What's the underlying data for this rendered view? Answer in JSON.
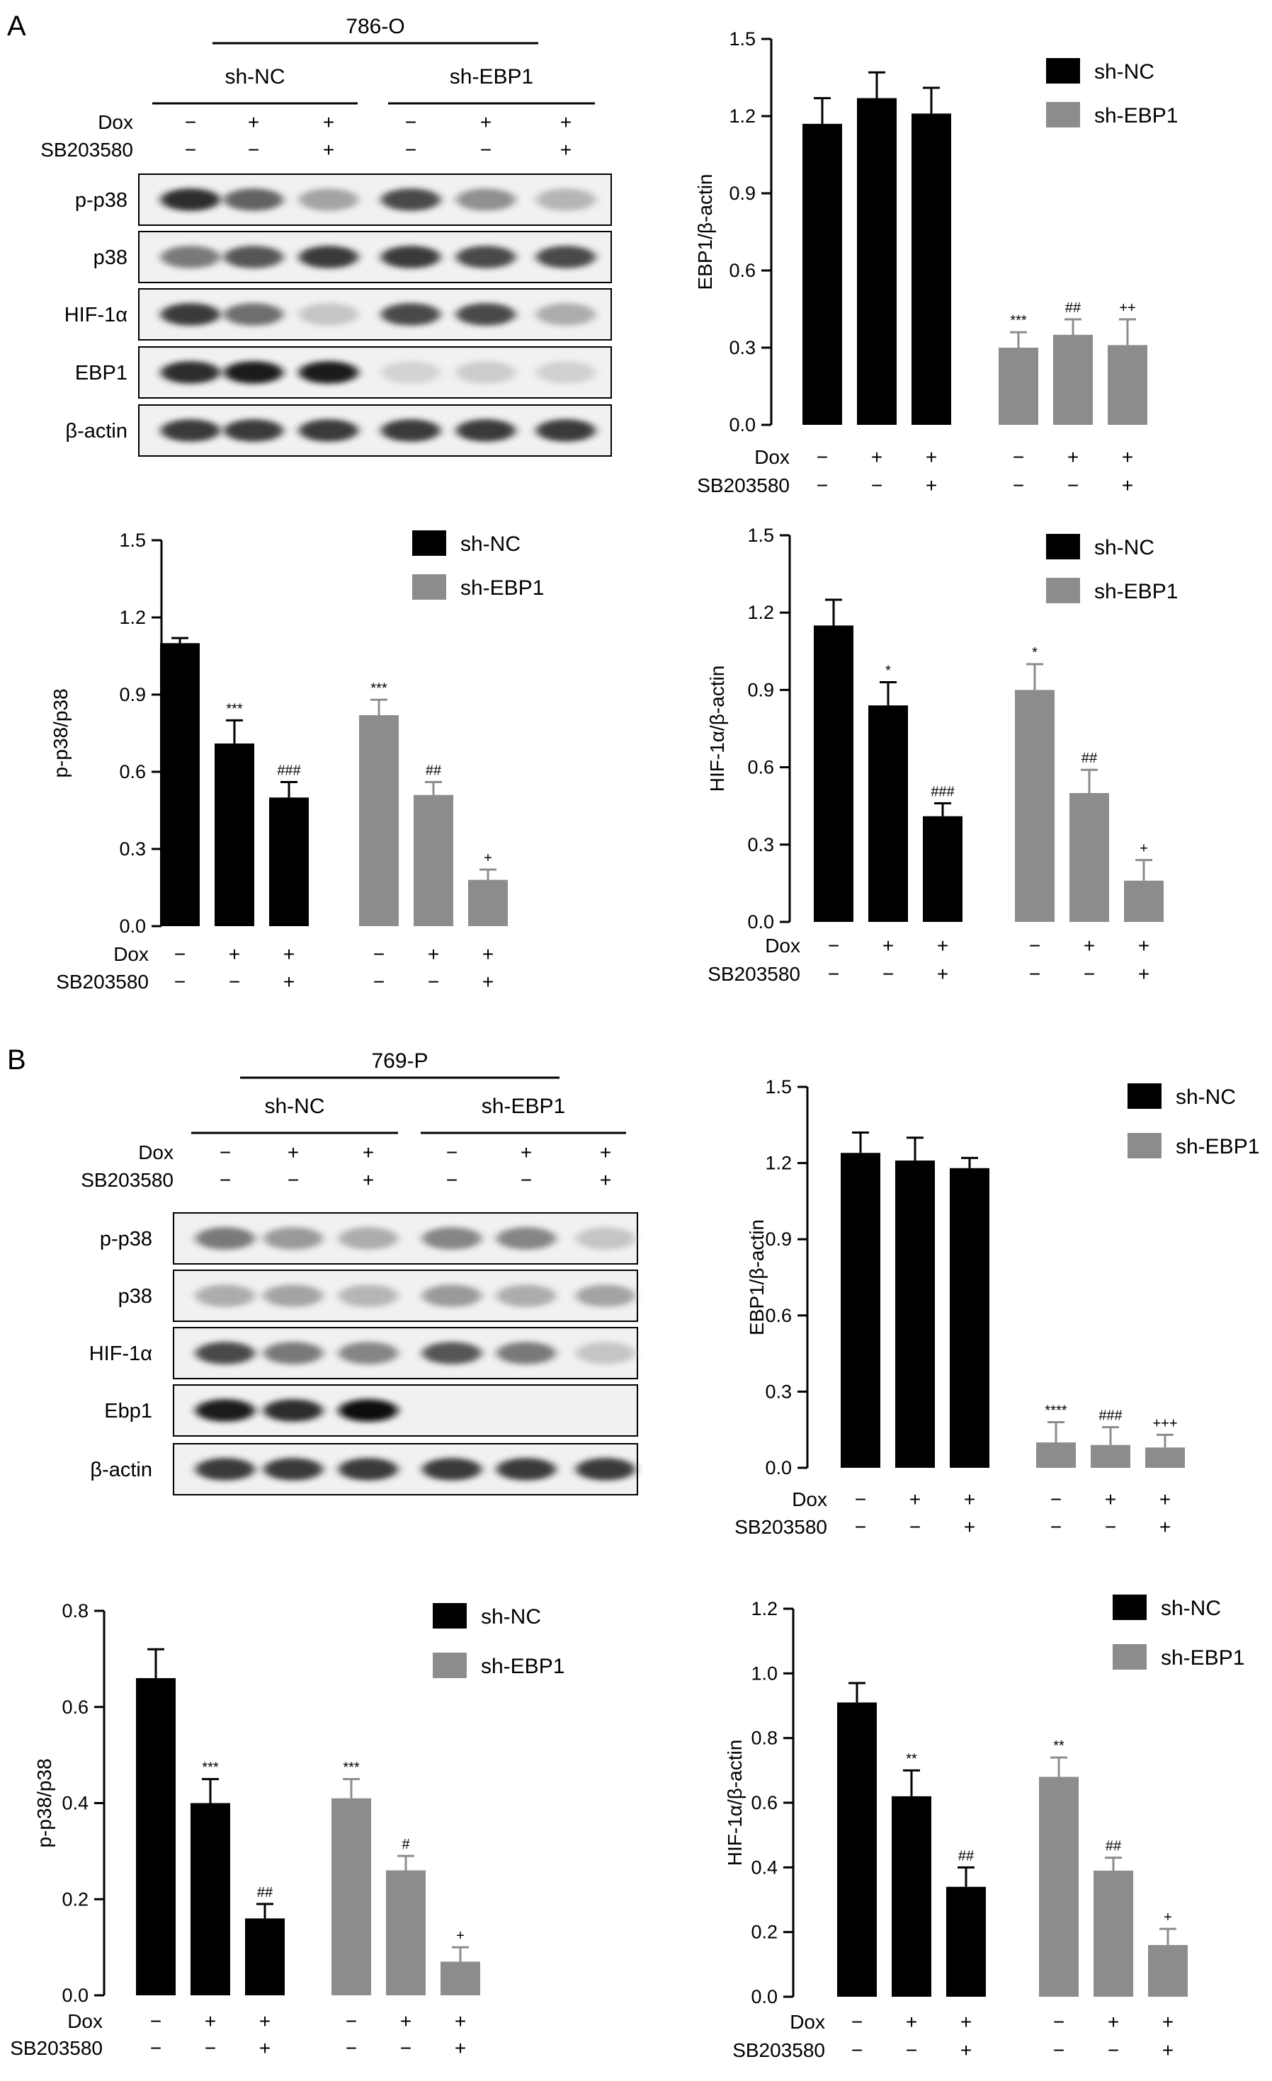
{
  "panelA": {
    "letter": "A",
    "blot": {
      "cell_line": "786-O",
      "groups": [
        "sh-NC",
        "sh-EBP1"
      ],
      "conditions": [
        {
          "name": "Dox",
          "values": [
            "−",
            "+",
            "+",
            "−",
            "+",
            "+"
          ]
        },
        {
          "name": "SB203580",
          "values": [
            "−",
            "−",
            "+",
            "−",
            "−",
            "+"
          ]
        }
      ],
      "rows": [
        {
          "label": "p-p38",
          "intensities": [
            0.9,
            0.7,
            0.4,
            0.8,
            0.5,
            0.3
          ]
        },
        {
          "label": "p38",
          "intensities": [
            0.6,
            0.75,
            0.85,
            0.85,
            0.8,
            0.8
          ]
        },
        {
          "label": "HIF-1α",
          "intensities": [
            0.85,
            0.65,
            0.2,
            0.8,
            0.8,
            0.35
          ]
        },
        {
          "label": "EBP1",
          "intensities": [
            0.9,
            0.95,
            0.95,
            0.1,
            0.15,
            0.12
          ]
        },
        {
          "label": "β-actin",
          "intensities": [
            0.85,
            0.85,
            0.85,
            0.85,
            0.85,
            0.85
          ]
        }
      ]
    }
  },
  "panelB": {
    "letter": "B",
    "blot": {
      "cell_line": "769-P",
      "groups": [
        "sh-NC",
        "sh-EBP1"
      ],
      "conditions": [
        {
          "name": "Dox",
          "values": [
            "−",
            "+",
            "+",
            "−",
            "+",
            "+"
          ]
        },
        {
          "name": "SB203580",
          "values": [
            "−",
            "−",
            "+",
            "−",
            "−",
            "+"
          ]
        }
      ],
      "rows": [
        {
          "label": "p-p38",
          "intensities": [
            0.6,
            0.45,
            0.35,
            0.55,
            0.55,
            0.2
          ]
        },
        {
          "label": "p38",
          "intensities": [
            0.35,
            0.4,
            0.3,
            0.45,
            0.35,
            0.4
          ]
        },
        {
          "label": "HIF-1α",
          "intensities": [
            0.8,
            0.6,
            0.55,
            0.75,
            0.6,
            0.2
          ]
        },
        {
          "label": "Ebp1",
          "intensities": [
            0.95,
            0.9,
            1.0,
            0.0,
            0.0,
            0.0
          ]
        },
        {
          "label": "β-actin",
          "intensities": [
            0.85,
            0.85,
            0.85,
            0.85,
            0.85,
            0.85
          ]
        }
      ]
    }
  },
  "conditions_axis": {
    "dox_label": "Dox",
    "sb_label": "SB203580",
    "dox": [
      "−",
      "+",
      "+",
      "−",
      "+",
      "+"
    ],
    "sb": [
      "−",
      "−",
      "+",
      "−",
      "−",
      "+"
    ]
  },
  "legend": {
    "sh_nc": "sh-NC",
    "sh_ebp1": "sh-EBP1"
  },
  "colors": {
    "sh_nc": "#000000",
    "sh_ebp1": "#8c8c8c"
  },
  "chart_data": [
    {
      "id": "A-EBP1",
      "type": "bar",
      "title": "",
      "xlabel": "",
      "ylabel": "EBP1/β-actin",
      "ylim": [
        0,
        1.5
      ],
      "yticks": [
        "0.0",
        "0.3",
        "0.6",
        "0.9",
        "1.2",
        "1.5"
      ],
      "legend_position": "top-right",
      "series": [
        {
          "name": "sh-NC",
          "values": [
            1.17,
            1.27,
            1.21
          ],
          "errors": [
            0.1,
            0.1,
            0.1
          ],
          "annotations": [
            "",
            "",
            ""
          ]
        },
        {
          "name": "sh-EBP1",
          "values": [
            0.3,
            0.35,
            0.31
          ],
          "errors": [
            0.06,
            0.06,
            0.1
          ],
          "annotations": [
            "***",
            "##",
            "++"
          ]
        }
      ]
    },
    {
      "id": "A-pp38",
      "type": "bar",
      "title": "",
      "xlabel": "",
      "ylabel": "p-p38/p38",
      "ylim": [
        0,
        1.5
      ],
      "yticks": [
        "0.0",
        "0.3",
        "0.6",
        "0.9",
        "1.2",
        "1.5"
      ],
      "legend_position": "top-right",
      "series": [
        {
          "name": "sh-NC",
          "values": [
            1.1,
            0.71,
            0.5
          ],
          "errors": [
            0.02,
            0.09,
            0.06
          ],
          "annotations": [
            "",
            "***",
            "###"
          ]
        },
        {
          "name": "sh-EBP1",
          "values": [
            0.82,
            0.51,
            0.18
          ],
          "errors": [
            0.06,
            0.05,
            0.04
          ],
          "annotations": [
            "***",
            "##",
            "+"
          ]
        }
      ]
    },
    {
      "id": "A-HIF",
      "type": "bar",
      "title": "",
      "xlabel": "",
      "ylabel": "HIF-1α/β-actin",
      "ylim": [
        0,
        1.5
      ],
      "yticks": [
        "0.0",
        "0.3",
        "0.6",
        "0.9",
        "1.2",
        "1.5"
      ],
      "legend_position": "top-right",
      "series": [
        {
          "name": "sh-NC",
          "values": [
            1.15,
            0.84,
            0.41
          ],
          "errors": [
            0.1,
            0.09,
            0.05
          ],
          "annotations": [
            "",
            "*",
            "###"
          ]
        },
        {
          "name": "sh-EBP1",
          "values": [
            0.9,
            0.5,
            0.16
          ],
          "errors": [
            0.1,
            0.09,
            0.08
          ],
          "annotations": [
            "*",
            "##",
            "+"
          ]
        }
      ]
    },
    {
      "id": "B-EBP1",
      "type": "bar",
      "title": "",
      "xlabel": "",
      "ylabel": "EBP1/β-actin",
      "ylim": [
        0,
        1.5
      ],
      "yticks": [
        "0.0",
        "0.3",
        "0.6",
        "0.9",
        "1.2",
        "1.5"
      ],
      "legend_position": "top-right",
      "series": [
        {
          "name": "sh-NC",
          "values": [
            1.24,
            1.21,
            1.18
          ],
          "errors": [
            0.08,
            0.09,
            0.04
          ],
          "annotations": [
            "",
            "",
            ""
          ]
        },
        {
          "name": "sh-EBP1",
          "values": [
            0.1,
            0.09,
            0.08
          ],
          "errors": [
            0.08,
            0.07,
            0.05
          ],
          "annotations": [
            "****",
            "###",
            "+++"
          ]
        }
      ]
    },
    {
      "id": "B-pp38",
      "type": "bar",
      "title": "",
      "xlabel": "",
      "ylabel": "p-p38/p38",
      "ylim": [
        0,
        0.8
      ],
      "yticks": [
        "0.0",
        "0.2",
        "0.4",
        "0.6",
        "0.8"
      ],
      "legend_position": "top-right",
      "series": [
        {
          "name": "sh-NC",
          "values": [
            0.66,
            0.4,
            0.16
          ],
          "errors": [
            0.06,
            0.05,
            0.03
          ],
          "annotations": [
            "",
            "***",
            "##"
          ]
        },
        {
          "name": "sh-EBP1",
          "values": [
            0.41,
            0.26,
            0.07
          ],
          "errors": [
            0.04,
            0.03,
            0.03
          ],
          "annotations": [
            "***",
            "#",
            "+"
          ]
        }
      ]
    },
    {
      "id": "B-HIF",
      "type": "bar",
      "title": "",
      "xlabel": "",
      "ylabel": "HIF-1α/β-actin",
      "ylim": [
        0,
        1.2
      ],
      "yticks": [
        "0.0",
        "0.2",
        "0.4",
        "0.6",
        "0.8",
        "1.0",
        "1.2"
      ],
      "legend_position": "top-right",
      "series": [
        {
          "name": "sh-NC",
          "values": [
            0.91,
            0.62,
            0.34
          ],
          "errors": [
            0.06,
            0.08,
            0.06
          ],
          "annotations": [
            "",
            "**",
            "##"
          ]
        },
        {
          "name": "sh-EBP1",
          "values": [
            0.68,
            0.39,
            0.16
          ],
          "errors": [
            0.06,
            0.04,
            0.05
          ],
          "annotations": [
            "**",
            "##",
            "+"
          ]
        }
      ]
    }
  ]
}
